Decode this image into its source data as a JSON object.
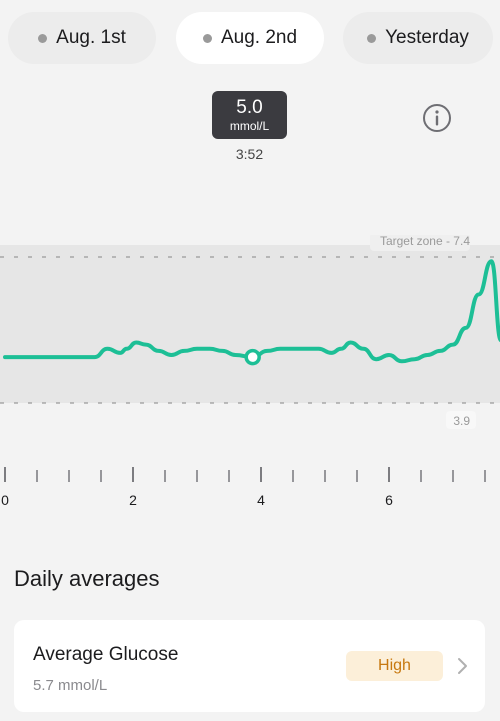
{
  "date_tabs": [
    {
      "label": "Aug. 1st",
      "selected": false
    },
    {
      "label": "Aug. 2nd",
      "selected": true
    },
    {
      "label": "Yesterday",
      "selected": false
    }
  ],
  "reading": {
    "value": "5.0",
    "unit": "mmol/L",
    "time": "3:52"
  },
  "info_icon": "info-circle-icon",
  "chart_data": {
    "type": "line",
    "target_zone_label": "Target zone - 7.4",
    "lower_label": "3.9",
    "target_range": [
      3.9,
      7.4
    ],
    "x_ticks": [
      "0",
      "2",
      "4",
      "6"
    ],
    "x_range_hours": [
      0,
      7.75
    ],
    "series": [
      {
        "color": "#1dbf96",
        "x": [
          0,
          0.5,
          1,
          1.4,
          1.6,
          1.8,
          1.9,
          2.05,
          2.2,
          2.4,
          2.6,
          2.8,
          3.0,
          3.2,
          3.4,
          3.6,
          3.87,
          4.1,
          4.3,
          4.6,
          4.9,
          5.1,
          5.25,
          5.4,
          5.6,
          5.8,
          6.0,
          6.2,
          6.4,
          6.6,
          6.8,
          7.0,
          7.2,
          7.4,
          7.6,
          7.75
        ],
        "y": [
          5.0,
          5.0,
          5.0,
          5.0,
          5.2,
          5.1,
          5.2,
          5.35,
          5.3,
          5.15,
          5.05,
          5.15,
          5.2,
          5.2,
          5.15,
          5.05,
          5.0,
          5.15,
          5.2,
          5.2,
          5.2,
          5.1,
          5.2,
          5.35,
          5.2,
          4.95,
          5.05,
          4.9,
          4.95,
          5.05,
          5.15,
          5.3,
          5.7,
          6.5,
          7.3,
          5.4
        ]
      }
    ],
    "selected_point": {
      "x": 3.87,
      "y": 5.0
    }
  },
  "daily_averages": {
    "title": "Daily averages",
    "card": {
      "title": "Average Glucose",
      "value": "5.7 mmol/L",
      "status": "High",
      "status_bg": "#fcefd9",
      "status_color": "#c7780f"
    }
  }
}
